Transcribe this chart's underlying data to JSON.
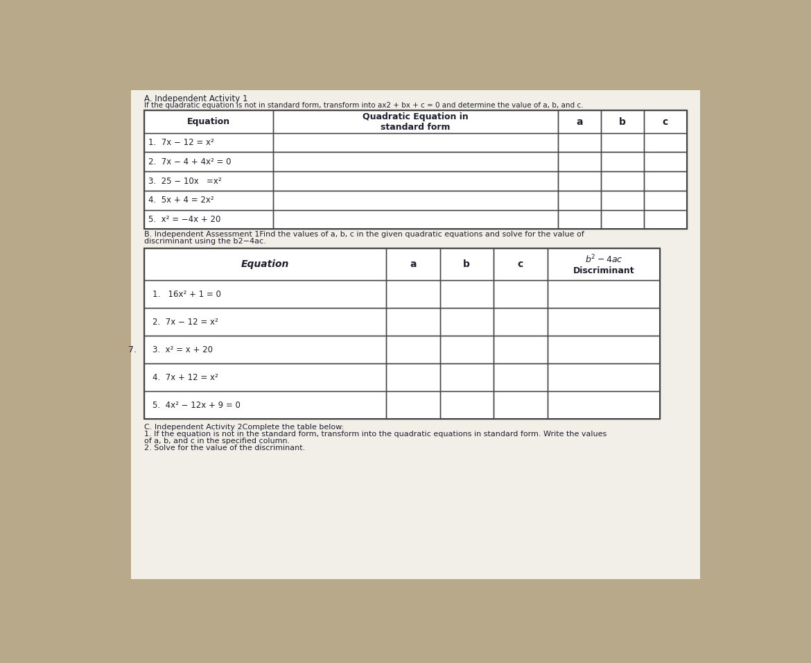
{
  "bg_color": "#b8a98a",
  "paper_color": "#f2efe8",
  "title_A": "A. Independent Activity 1",
  "subtitle_A": "If the quadratic equation is not in standard form, transform into ax2 + bx + c = 0 and determine the value of a, b, and c.",
  "table1_rows": [
    "1.  7x − 12 = x²",
    "2.  7x − 4 + 4x² = 0",
    "3.  25 − 10x   =x²",
    "4.  5x + 4 = 2x²",
    "5.  x² = −4x + 20"
  ],
  "title_B": "B. Independent Assessment 1",
  "subtitle_B1": "Find the values of a, b, c in the given quadratic equations and solve for the value of",
  "subtitle_B2": "discriminant using the b2−4ac.",
  "table2_rows": [
    "1.   16x² + 1 = 0",
    "2.  7x − 12 = x²",
    "3.  x² = x + 20",
    "4.  7x + 12 = x²",
    "5.  4x² − 12x + 9 = 0"
  ],
  "title_C": "C. Independent Activity 2Complete the table below:",
  "subtitle_C1": "1. If the equation is not in the standard form, transform into the quadratic equations in standard form. Write the values",
  "subtitle_C2": "of a, b, and c in the specified column.",
  "subtitle_C3": "2. Solve for the value of the discriminant.",
  "text_color": "#1e1e2e",
  "line_color": "#444444"
}
